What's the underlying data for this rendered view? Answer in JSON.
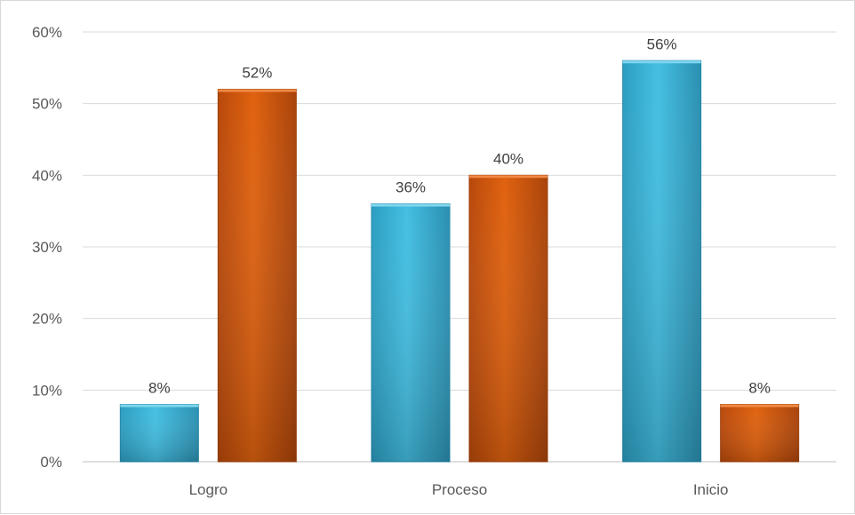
{
  "chart_data": {
    "type": "bar",
    "categories": [
      "Logro",
      "Proceso",
      "Inicio"
    ],
    "series": [
      {
        "values": [
          8,
          36,
          56
        ],
        "color": "#3db6d9"
      },
      {
        "values": [
          52,
          40,
          8
        ],
        "color": "#d95a0c"
      }
    ],
    "data_labels": [
      [
        "8%",
        "36%",
        "56%"
      ],
      [
        "52%",
        "40%",
        "8%"
      ]
    ],
    "y_ticks": [
      0,
      10,
      20,
      30,
      40,
      50,
      60
    ],
    "y_tick_labels": [
      "0%",
      "10%",
      "20%",
      "30%",
      "40%",
      "50%",
      "60%"
    ],
    "ylim": [
      0,
      60
    ],
    "grid": true,
    "legend": "none",
    "title": "",
    "xlabel": "",
    "ylabel": ""
  }
}
